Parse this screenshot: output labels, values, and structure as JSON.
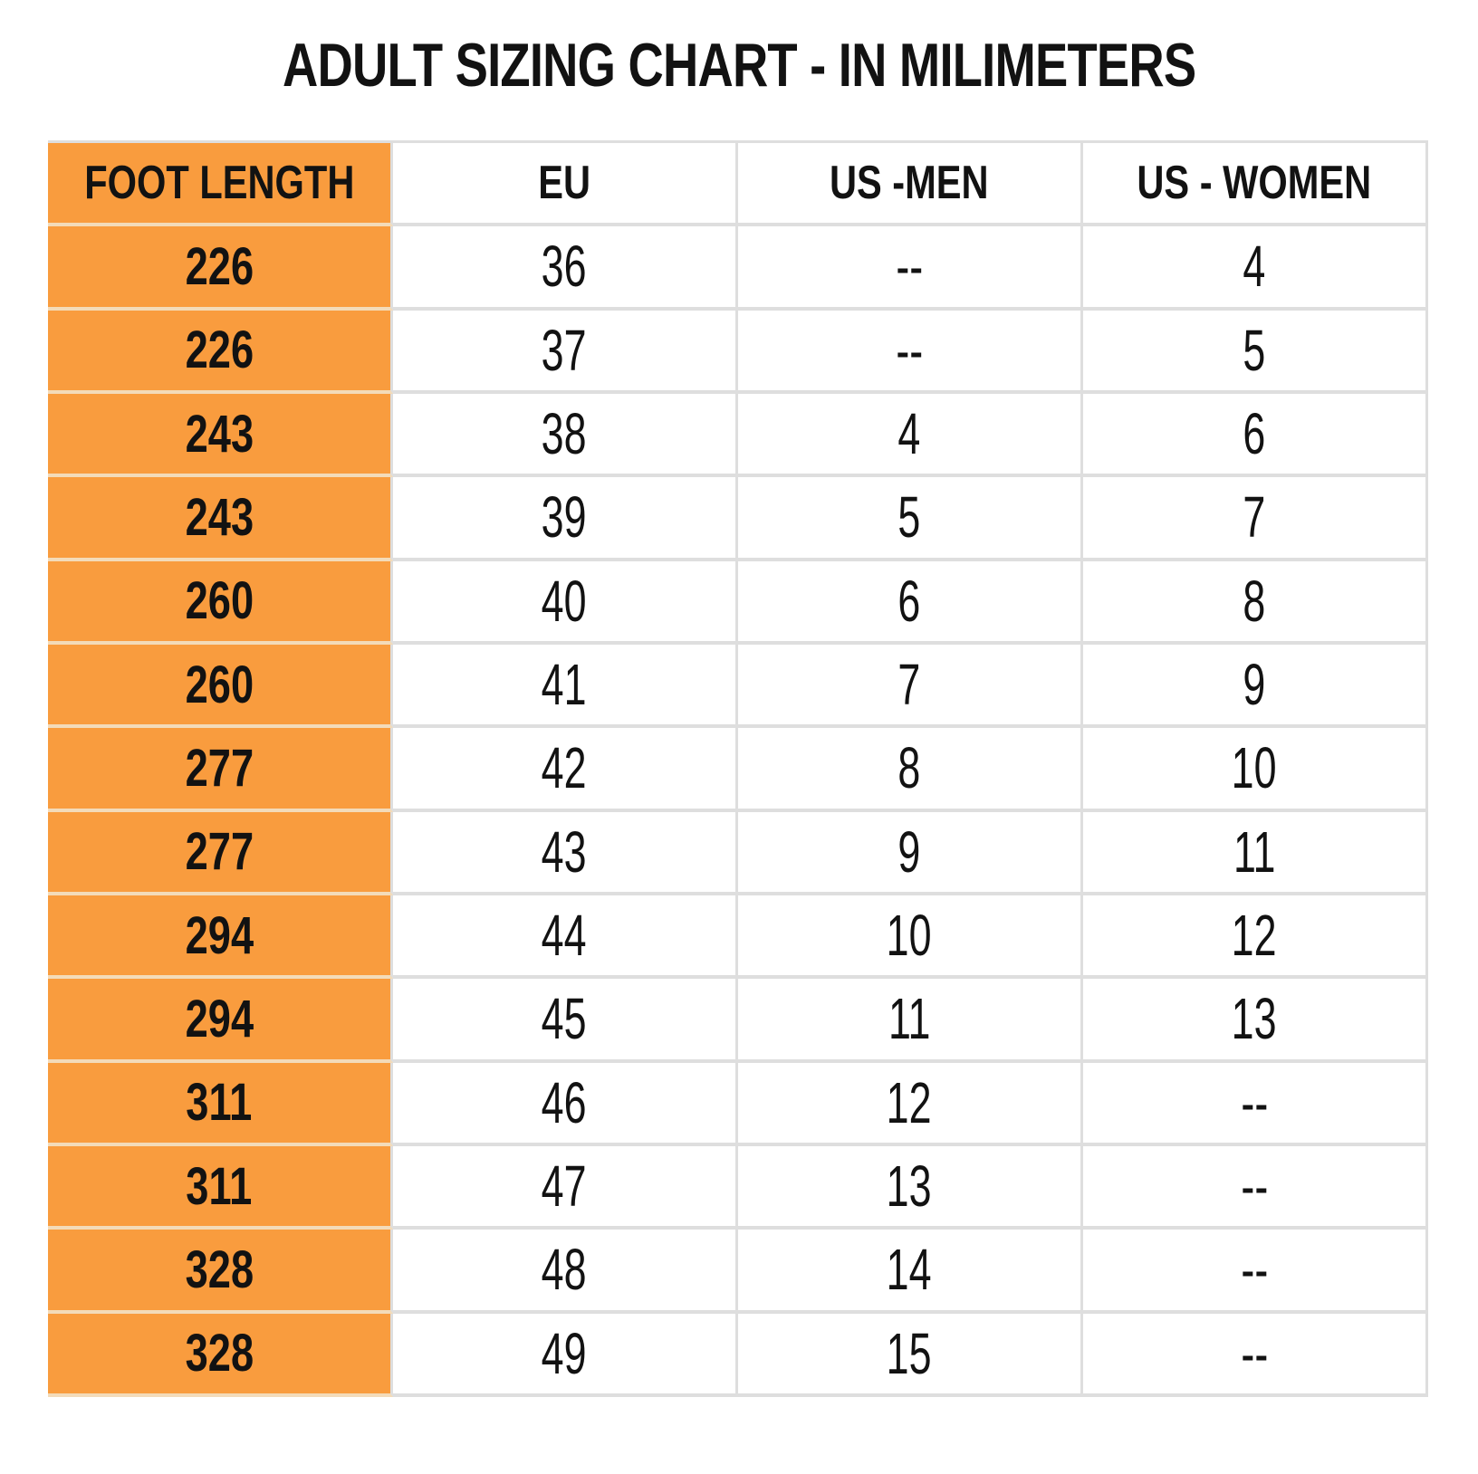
{
  "title": "ADULT SIZING CHART - IN MILIMETERS",
  "chart_data": {
    "type": "table",
    "title": "ADULT SIZING CHART - IN MILIMETERS",
    "columns": [
      "FOOT LENGTH",
      "EU",
      "US -MEN",
      "US - WOMEN"
    ],
    "rows": [
      [
        "226",
        "36",
        "--",
        "4"
      ],
      [
        "226",
        "37",
        "--",
        "5"
      ],
      [
        "243",
        "38",
        "4",
        "6"
      ],
      [
        "243",
        "39",
        "5",
        "7"
      ],
      [
        "260",
        "40",
        "6",
        "8"
      ],
      [
        "260",
        "41",
        "7",
        "9"
      ],
      [
        "277",
        "42",
        "8",
        "10"
      ],
      [
        "277",
        "43",
        "9",
        "11"
      ],
      [
        "294",
        "44",
        "10",
        "12"
      ],
      [
        "294",
        "45",
        "11",
        "13"
      ],
      [
        "311",
        "46",
        "12",
        "--"
      ],
      [
        "311",
        "47",
        "13",
        "--"
      ],
      [
        "328",
        "48",
        "14",
        "--"
      ],
      [
        "328",
        "49",
        "15",
        "--"
      ]
    ],
    "layout": {
      "first_column_highlight": true,
      "grid": true
    }
  },
  "colors": {
    "accent_orange": "#F99C3E",
    "grid_line": "#DEDEDE",
    "orange_row_separator": "#F3DBB9",
    "text": "#121212",
    "background": "#FFFFFF"
  }
}
